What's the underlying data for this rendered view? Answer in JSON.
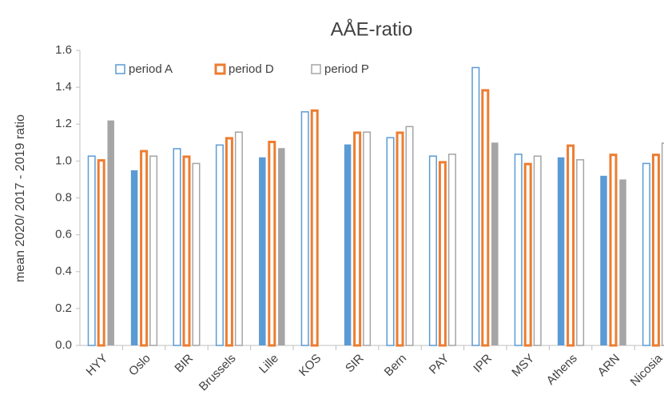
{
  "chart_data": {
    "type": "bar",
    "title": "AÅE-ratio",
    "y_label": "mean 2020/ 2017 - 2019 ratio",
    "categories": [
      "HYY",
      "Oslo",
      "BIR",
      "Brussels",
      "Lille",
      "KOS",
      "SIR",
      "Bern",
      "PAY",
      "IPR",
      "MSY",
      "Athens",
      "ARN",
      "Nicosia"
    ],
    "series": [
      {
        "name": "period A",
        "color": "#5b9bd5",
        "values": [
          1.03,
          0.95,
          1.07,
          1.09,
          1.02,
          1.27,
          1.09,
          1.13,
          1.03,
          1.51,
          1.04,
          1.02,
          0.92,
          0.99
        ],
        "filled": [
          false,
          true,
          false,
          false,
          true,
          false,
          true,
          false,
          false,
          false,
          false,
          true,
          true,
          false
        ]
      },
      {
        "name": "period D",
        "color": "#ed7d31",
        "values": [
          1.01,
          1.06,
          1.03,
          1.13,
          1.11,
          1.28,
          1.16,
          1.16,
          1.0,
          1.39,
          0.99,
          1.09,
          1.04,
          1.04
        ],
        "filled": [
          false,
          false,
          false,
          false,
          false,
          false,
          false,
          false,
          false,
          false,
          false,
          false,
          false,
          false
        ]
      },
      {
        "name": "period P",
        "color": "#a5a5a5",
        "values": [
          1.22,
          1.03,
          0.99,
          1.16,
          1.07,
          null,
          1.16,
          1.19,
          1.04,
          1.1,
          1.03,
          1.01,
          0.9,
          1.1
        ],
        "filled": [
          true,
          false,
          false,
          false,
          true,
          false,
          false,
          false,
          false,
          true,
          false,
          false,
          true,
          false
        ]
      }
    ],
    "ylim": [
      0,
      1.6
    ],
    "yticks": [
      {
        "value": 0,
        "label": "0.0"
      },
      0.2,
      0.4,
      0.6,
      0.8,
      {
        "value": 1,
        "label": "1.0"
      },
      1.2,
      1.4,
      1.6
    ],
    "legend": "top-left",
    "grid": false
  }
}
